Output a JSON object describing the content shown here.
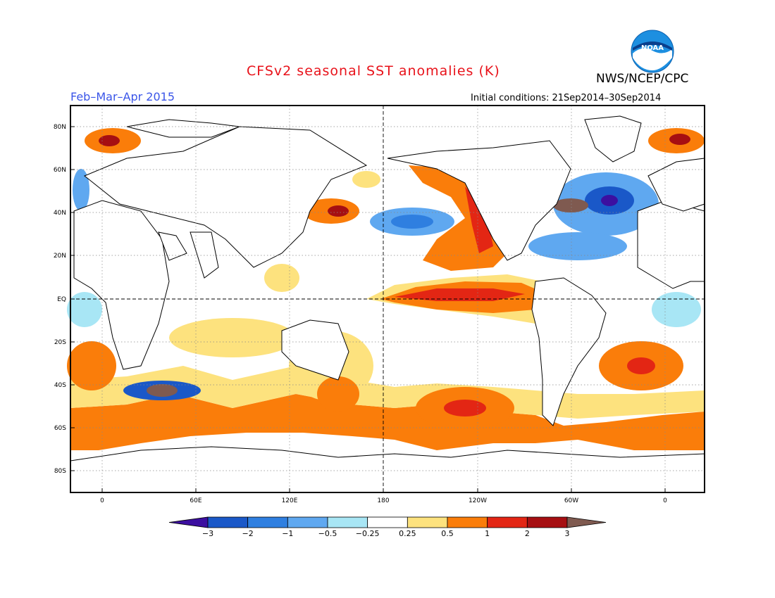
{
  "title": "CFSv2 seasonal SST anomalies (K)",
  "organization": "NWS/NCEP/CPC",
  "period": "Feb–Mar–Apr 2015",
  "initial_conditions": "Initial conditions: 21Sep2014–30Sep2014",
  "logo_text": "NOAA",
  "lat_labels": [
    "80N",
    "60N",
    "40N",
    "20N",
    "EQ",
    "20S",
    "40S",
    "60S",
    "80S"
  ],
  "lon_labels": [
    "0",
    "60E",
    "120E",
    "180",
    "120W",
    "60W",
    "0"
  ],
  "colorbar": {
    "labels": [
      "−3",
      "−2",
      "−1",
      "−0.5",
      "−0.25",
      "0.25",
      "0.5",
      "1",
      "2",
      "3"
    ],
    "colors": [
      "#3c0fa0",
      "#1a58c8",
      "#2f7fe0",
      "#5fa8f0",
      "#a8e6f5",
      "#ffffff",
      "#fde27e",
      "#fa7d0a",
      "#e32614",
      "#a60f12",
      "#7f5a50"
    ]
  }
}
